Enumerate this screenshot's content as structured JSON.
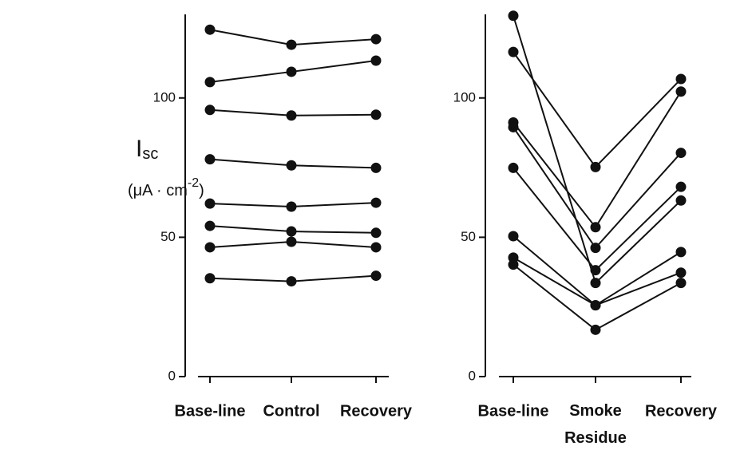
{
  "chart_data": [
    {
      "type": "line",
      "categories": [
        "Base-line",
        "Control",
        "Recovery"
      ],
      "ylim": [
        0,
        130
      ],
      "yticks": [
        0,
        50,
        100
      ],
      "color": "#111111",
      "ylabel": {
        "main": "I",
        "sub": "sc",
        "unit": "(μA · cm",
        "sup": "-2",
        "close": ")"
      },
      "series": [
        {
          "values": [
            124.5,
            119.1,
            121.1
          ]
        },
        {
          "values": [
            105.7,
            109.4,
            113.4
          ]
        },
        {
          "values": [
            95.7,
            93.7,
            94
          ]
        },
        {
          "values": [
            78,
            75.8,
            74.9
          ]
        },
        {
          "values": [
            62.1,
            61,
            62.4
          ]
        },
        {
          "values": [
            54.1,
            52.1,
            51.6
          ]
        },
        {
          "values": [
            46.4,
            48.4,
            46.4
          ]
        },
        {
          "values": [
            35.3,
            34.2,
            36.2
          ]
        }
      ]
    },
    {
      "type": "line",
      "categories": [
        "Base-line",
        "Smoke Residue",
        "Recovery"
      ],
      "ylim": [
        0,
        130
      ],
      "yticks": [
        0,
        50,
        100
      ],
      "color": "#111111",
      "series": [
        {
          "values": [
            129.5,
            33.6,
            63.2
          ]
        },
        {
          "values": [
            116.5,
            75.2,
            106.8
          ]
        },
        {
          "values": [
            91.2,
            53.6,
            102.3
          ]
        },
        {
          "values": [
            89.5,
            46.2,
            80.3
          ]
        },
        {
          "values": [
            74.9,
            38.2,
            68.1
          ]
        },
        {
          "values": [
            50.4,
            25.6,
            44.7
          ]
        },
        {
          "values": [
            42.7,
            25.6,
            37.3
          ]
        },
        {
          "values": [
            40.2,
            16.8,
            33.6
          ]
        }
      ]
    }
  ]
}
